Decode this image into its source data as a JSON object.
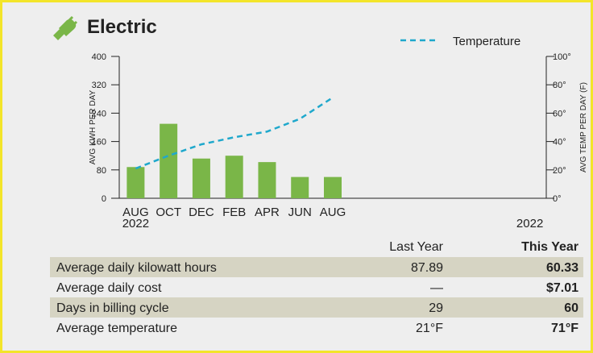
{
  "header": {
    "title": "Electric"
  },
  "chart_data": {
    "type": "bar",
    "categories": [
      "AUG",
      "OCT",
      "DEC",
      "FEB",
      "APR",
      "JUN",
      "AUG",
      null,
      null,
      null,
      null,
      null,
      null
    ],
    "year_labels": [
      "2022",
      null,
      null,
      null,
      null,
      null,
      null,
      null,
      null,
      null,
      null,
      null,
      "2022"
    ],
    "series": [
      {
        "color": "#7ab648",
        "values": [
          88,
          210,
          112,
          120,
          102,
          60,
          60,
          null,
          null,
          null,
          null,
          null,
          null
        ]
      },
      {
        "name": "Temperature",
        "type": "line",
        "axis": "y2",
        "color": "#1fa8cc",
        "values": [
          21,
          30,
          38,
          43,
          47,
          56,
          71,
          null,
          null,
          null,
          null,
          null,
          null
        ]
      }
    ],
    "y_label": "AVG KWH PER DAY",
    "y2_label": "AVG TEMP PER DAY (F)",
    "ylim": [
      0,
      400
    ],
    "yticks": [
      0,
      80,
      160,
      240,
      320,
      400
    ],
    "y2lim": [
      0,
      100
    ],
    "y2ticks": [
      {
        "value": 0,
        "label": "0°"
      },
      {
        "value": 20,
        "label": "20°"
      },
      {
        "value": 40,
        "label": "40°"
      },
      {
        "value": 60,
        "label": "60°"
      },
      {
        "value": 80,
        "label": "80°"
      },
      {
        "value": 100,
        "label": "100°"
      }
    ],
    "legend": "top-right"
  },
  "table": {
    "columns": [
      "Last Year",
      "This Year"
    ],
    "rows": [
      [
        "Average daily kilowatt hours",
        "87.89",
        "60.33"
      ],
      [
        "Average daily cost",
        "—",
        "$7.01"
      ],
      [
        "Days in billing cycle",
        "29",
        "60"
      ],
      [
        "Average temperature",
        "21°F",
        "71°F"
      ]
    ]
  }
}
